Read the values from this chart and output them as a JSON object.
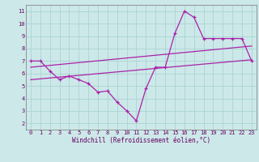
{
  "xlabel": "Windchill (Refroidissement éolien,°C)",
  "bg_color": "#cce8e8",
  "grid_color": "#aad4d4",
  "line_color": "#aa22aa",
  "xlim": [
    -0.5,
    23.5
  ],
  "ylim": [
    1.5,
    11.5
  ],
  "xticks": [
    0,
    1,
    2,
    3,
    4,
    5,
    6,
    7,
    8,
    9,
    10,
    11,
    12,
    13,
    14,
    15,
    16,
    17,
    18,
    19,
    20,
    21,
    22,
    23
  ],
  "yticks": [
    2,
    3,
    4,
    5,
    6,
    7,
    8,
    9,
    10,
    11
  ],
  "main_x": [
    0,
    1,
    2,
    3,
    4,
    5,
    6,
    7,
    8,
    9,
    10,
    11,
    12,
    13,
    14,
    15,
    16,
    17,
    18,
    19,
    20,
    21,
    22,
    23
  ],
  "main_y": [
    7.0,
    7.0,
    6.2,
    5.5,
    5.8,
    5.5,
    5.2,
    4.5,
    4.6,
    3.7,
    3.0,
    2.2,
    4.8,
    6.5,
    6.5,
    9.2,
    11.0,
    10.5,
    8.8,
    8.8,
    8.8,
    8.8,
    8.8,
    7.0
  ],
  "trend1_x": [
    0,
    23
  ],
  "trend1_y": [
    6.5,
    8.2
  ],
  "trend2_x": [
    0,
    23
  ],
  "trend2_y": [
    5.5,
    7.1
  ],
  "tick_fontsize": 5.0,
  "xlabel_fontsize": 5.5,
  "tick_color": "#660066",
  "spine_color": "#888888"
}
